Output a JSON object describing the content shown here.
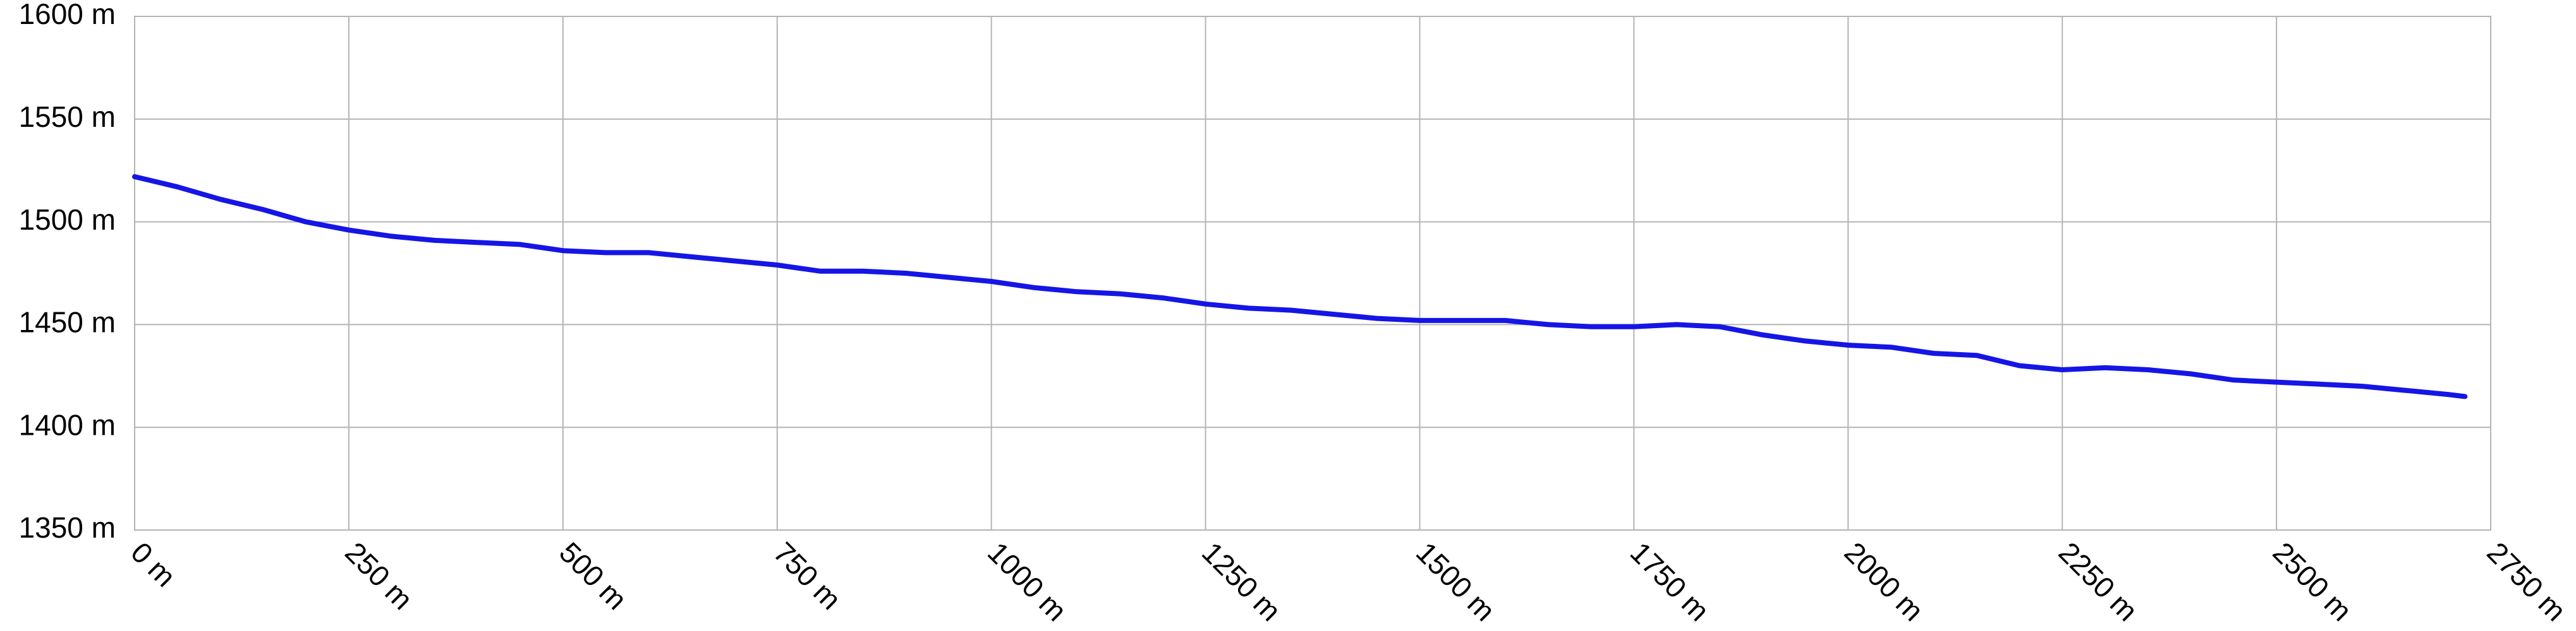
{
  "chart_data": {
    "type": "line",
    "x": [
      0,
      50,
      100,
      150,
      200,
      250,
      300,
      350,
      400,
      450,
      500,
      550,
      600,
      650,
      700,
      750,
      800,
      850,
      900,
      950,
      1000,
      1050,
      1100,
      1150,
      1200,
      1250,
      1300,
      1350,
      1400,
      1450,
      1500,
      1550,
      1600,
      1650,
      1700,
      1750,
      1800,
      1850,
      1900,
      1950,
      2000,
      2050,
      2100,
      2150,
      2200,
      2250,
      2300,
      2350,
      2400,
      2450,
      2500,
      2550,
      2600,
      2650,
      2700,
      2720
    ],
    "values": [
      1522,
      1517,
      1511,
      1506,
      1500,
      1496,
      1493,
      1491,
      1490,
      1489,
      1486,
      1485,
      1485,
      1483,
      1481,
      1479,
      1476,
      1476,
      1475,
      1473,
      1471,
      1468,
      1466,
      1465,
      1463,
      1460,
      1458,
      1457,
      1455,
      1453,
      1452,
      1452,
      1452,
      1450,
      1449,
      1449,
      1450,
      1449,
      1445,
      1442,
      1440,
      1439,
      1436,
      1435,
      1430,
      1428,
      1429,
      1428,
      1426,
      1423,
      1422,
      1421,
      1420,
      1418,
      1416,
      1415
    ],
    "color": "#1515e6",
    "xlim": [
      0,
      2750
    ],
    "xticks": [
      {
        "value": 0,
        "label": "0 m"
      },
      {
        "value": 250,
        "label": "250 m"
      },
      {
        "value": 500,
        "label": "500 m"
      },
      {
        "value": 750,
        "label": "750 m"
      },
      {
        "value": 1000,
        "label": "1000 m"
      },
      {
        "value": 1250,
        "label": "1250 m"
      },
      {
        "value": 1500,
        "label": "1500 m"
      },
      {
        "value": 1750,
        "label": "1750 m"
      },
      {
        "value": 2000,
        "label": "2000 m"
      },
      {
        "value": 2250,
        "label": "2250 m"
      },
      {
        "value": 2500,
        "label": "2500 m"
      },
      {
        "value": 2750,
        "label": "2750 m"
      }
    ],
    "ylim": [
      1350,
      1600
    ],
    "yticks": [
      {
        "value": 1350,
        "label": "1350 m"
      },
      {
        "value": 1400,
        "label": "1400 m"
      },
      {
        "value": 1450,
        "label": "1450 m"
      },
      {
        "value": 1500,
        "label": "1500 m"
      },
      {
        "value": 1550,
        "label": "1550 m"
      },
      {
        "value": 1600,
        "label": "1600 m"
      }
    ],
    "grid": true
  }
}
